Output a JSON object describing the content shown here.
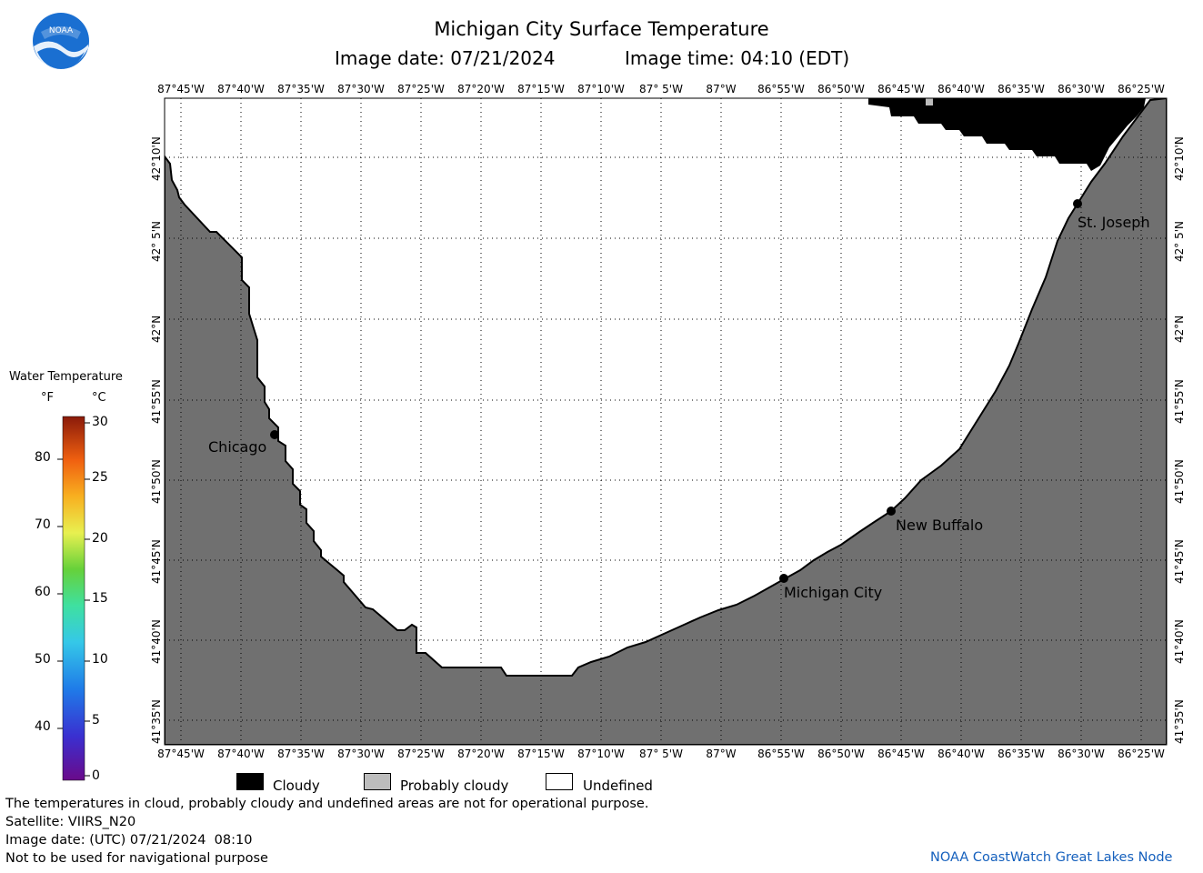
{
  "header": {
    "title": "Michigan City Surface Temperature",
    "image_date_line": "Image date: 07/21/2024",
    "image_time_line": "Image time: 04:10 (EDT)"
  },
  "logo": {
    "text": "NOAA",
    "color": "#1a6fd1"
  },
  "map": {
    "colors": {
      "land": "#707070",
      "cloudy": "#000000",
      "probably_cloudy": "#bdbdbd",
      "undefined": "#ffffff"
    },
    "longitude_labels": [
      "87°45'W",
      "87°40'W",
      "87°35'W",
      "87°30'W",
      "87°25'W",
      "87°20'W",
      "87°15'W",
      "87°10'W",
      "87° 5'W",
      "87°W",
      "86°55'W",
      "86°50'W",
      "86°45'W",
      "86°40'W",
      "86°35'W",
      "86°30'W",
      "86°25'W"
    ],
    "latitude_labels": [
      "42°10'N",
      "42° 5'N",
      "42°N",
      "41°55'N",
      "41°50'N",
      "41°45'N",
      "41°40'N",
      "41°35'N"
    ],
    "cities": [
      {
        "name": "Chicago"
      },
      {
        "name": "St. Joseph"
      },
      {
        "name": "New Buffalo"
      },
      {
        "name": "Michigan City"
      }
    ]
  },
  "legend": {
    "title": "Water Temperature",
    "unit_f": "°F",
    "unit_c": "°C",
    "ticks_f": [
      "80",
      "70",
      "60",
      "50",
      "40"
    ],
    "ticks_c": [
      "30",
      "25",
      "20",
      "15",
      "10",
      "5",
      "0"
    ]
  },
  "cloud_legend": {
    "cloudy": "Cloudy",
    "probably_cloudy": "Probably cloudy",
    "undefined": "Undefined"
  },
  "footer": {
    "note": "The temperatures in cloud, probably cloudy and undefined areas are not for operational purpose.",
    "satellite": "Satellite: VIIRS_N20",
    "image_date_utc": "Image date: (UTC) 07/21/2024  08:10",
    "navigation_warning": "Not to be used for navigational purpose",
    "credit": "NOAA CoastWatch Great Lakes Node"
  }
}
